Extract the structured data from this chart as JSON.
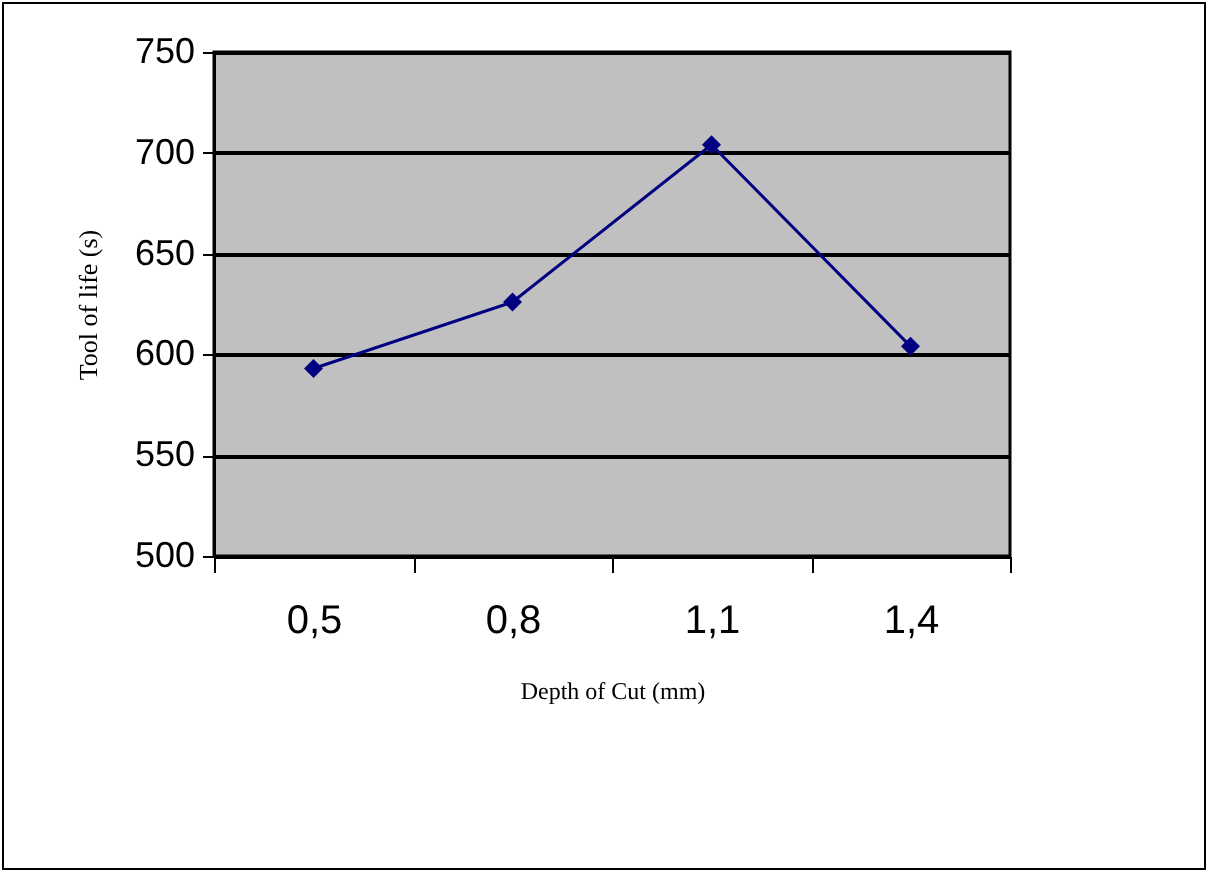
{
  "chart_data": {
    "type": "line",
    "xlabel": "Depth of Cut (mm)",
    "ylabel": "Tool of life (s)",
    "categories": [
      "0,5",
      "0,8",
      "1,1",
      "1,4"
    ],
    "series": [
      {
        "color": "#000080",
        "values": [
          593,
          626,
          704,
          604
        ]
      }
    ],
    "ylim": [
      500,
      750
    ],
    "yticks": [
      500,
      550,
      600,
      650,
      700,
      750
    ],
    "grid": "y",
    "marker": "diamond",
    "legend": false
  }
}
